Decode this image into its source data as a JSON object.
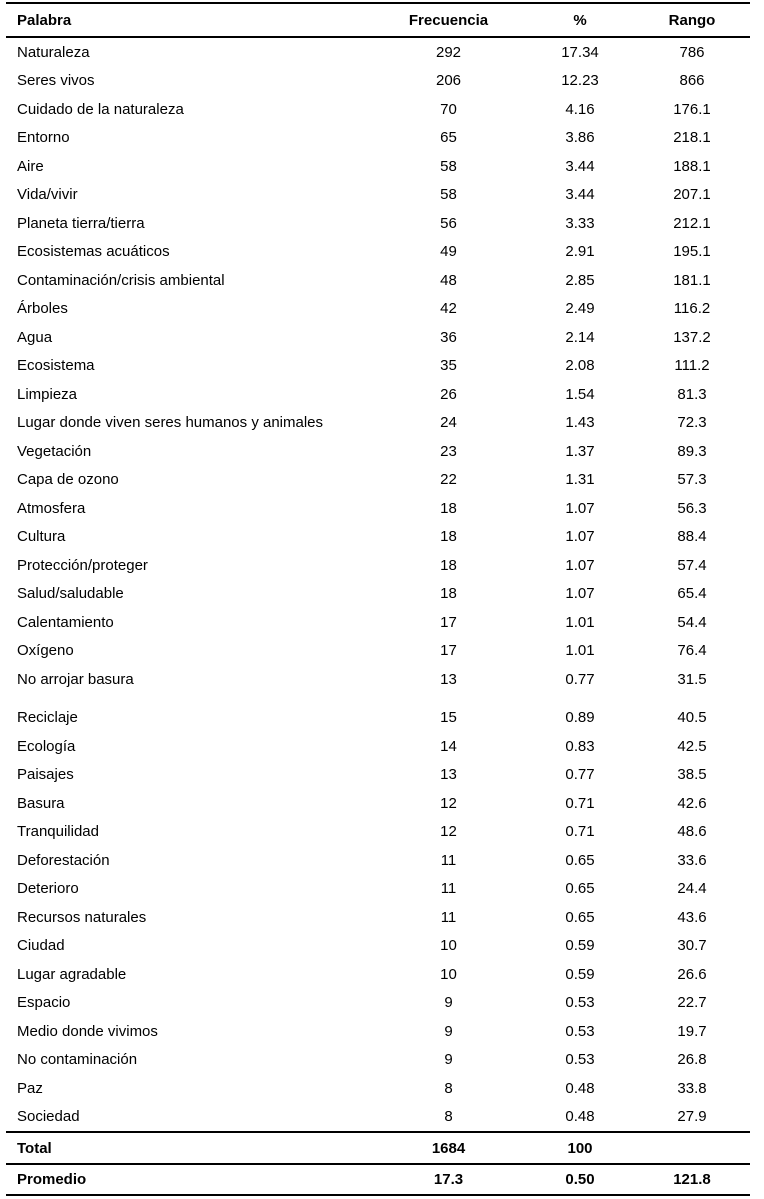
{
  "page": {
    "background_color": "#ffffff",
    "text_color": "#000000",
    "rule_color": "#000000"
  },
  "table": {
    "columns": [
      {
        "label": "Palabra",
        "align": "left"
      },
      {
        "label": "Frecuencia",
        "align": "center"
      },
      {
        "label": "%",
        "align": "center"
      },
      {
        "label": "Rango",
        "align": "center"
      }
    ],
    "rows": [
      {
        "palabra": "Naturaleza",
        "frecuencia": "292",
        "pct": "17.34",
        "rango": "786"
      },
      {
        "palabra": "Seres vivos",
        "frecuencia": "206",
        "pct": "12.23",
        "rango": "866"
      },
      {
        "palabra": "Cuidado de la naturaleza",
        "frecuencia": "70",
        "pct": "4.16",
        "rango": "176.1"
      },
      {
        "palabra": "Entorno",
        "frecuencia": "65",
        "pct": "3.86",
        "rango": "218.1"
      },
      {
        "palabra": "Aire",
        "frecuencia": "58",
        "pct": "3.44",
        "rango": "188.1"
      },
      {
        "palabra": "Vida/vivir",
        "frecuencia": "58",
        "pct": "3.44",
        "rango": "207.1"
      },
      {
        "palabra": "Planeta tierra/tierra",
        "frecuencia": "56",
        "pct": "3.33",
        "rango": "212.1"
      },
      {
        "palabra": "Ecosistemas acuáticos",
        "frecuencia": "49",
        "pct": "2.91",
        "rango": "195.1"
      },
      {
        "palabra": "Contaminación/crisis ambiental",
        "frecuencia": "48",
        "pct": "2.85",
        "rango": "181.1"
      },
      {
        "palabra": "Árboles",
        "frecuencia": "42",
        "pct": "2.49",
        "rango": "116.2"
      },
      {
        "palabra": "Agua",
        "frecuencia": "36",
        "pct": "2.14",
        "rango": "137.2"
      },
      {
        "palabra": "Ecosistema",
        "frecuencia": "35",
        "pct": "2.08",
        "rango": "111.2"
      },
      {
        "palabra": "Limpieza",
        "frecuencia": "26",
        "pct": "1.54",
        "rango": "81.3"
      },
      {
        "palabra": "Lugar donde viven seres humanos y animales",
        "frecuencia": "24",
        "pct": "1.43",
        "rango": "72.3"
      },
      {
        "palabra": "Vegetación",
        "frecuencia": "23",
        "pct": "1.37",
        "rango": "89.3"
      },
      {
        "palabra": "Capa de ozono",
        "frecuencia": "22",
        "pct": "1.31",
        "rango": "57.3"
      },
      {
        "palabra": "Atmosfera",
        "frecuencia": "18",
        "pct": "1.07",
        "rango": "56.3"
      },
      {
        "palabra": "Cultura",
        "frecuencia": "18",
        "pct": "1.07",
        "rango": "88.4"
      },
      {
        "palabra": "Protección/proteger",
        "frecuencia": "18",
        "pct": "1.07",
        "rango": "57.4"
      },
      {
        "palabra": "Salud/saludable",
        "frecuencia": "18",
        "pct": "1.07",
        "rango": "65.4"
      },
      {
        "palabra": "Calentamiento",
        "frecuencia": "17",
        "pct": "1.01",
        "rango": "54.4"
      },
      {
        "palabra": "Oxígeno",
        "frecuencia": "17",
        "pct": "1.01",
        "rango": "76.4"
      },
      {
        "palabra": "No arrojar basura",
        "frecuencia": "13",
        "pct": "0.77",
        "rango": "31.5"
      },
      {
        "palabra": "Reciclaje",
        "frecuencia": "15",
        "pct": "0.89",
        "rango": "40.5",
        "gap_before": true
      },
      {
        "palabra": "Ecología",
        "frecuencia": "14",
        "pct": "0.83",
        "rango": "42.5"
      },
      {
        "palabra": "Paisajes",
        "frecuencia": "13",
        "pct": "0.77",
        "rango": "38.5"
      },
      {
        "palabra": "Basura",
        "frecuencia": "12",
        "pct": "0.71",
        "rango": "42.6"
      },
      {
        "palabra": "Tranquilidad",
        "frecuencia": "12",
        "pct": "0.71",
        "rango": "48.6"
      },
      {
        "palabra": "Deforestación",
        "frecuencia": "11",
        "pct": "0.65",
        "rango": "33.6"
      },
      {
        "palabra": "Deterioro",
        "frecuencia": "11",
        "pct": "0.65",
        "rango": "24.4"
      },
      {
        "palabra": "Recursos naturales",
        "frecuencia": "11",
        "pct": "0.65",
        "rango": "43.6"
      },
      {
        "palabra": "Ciudad",
        "frecuencia": "10",
        "pct": "0.59",
        "rango": "30.7"
      },
      {
        "palabra": "Lugar agradable",
        "frecuencia": "10",
        "pct": "0.59",
        "rango": "26.6"
      },
      {
        "palabra": "Espacio",
        "frecuencia": "9",
        "pct": "0.53",
        "rango": "22.7"
      },
      {
        "palabra": "Medio donde vivimos",
        "frecuencia": "9",
        "pct": "0.53",
        "rango": "19.7"
      },
      {
        "palabra": "No contaminación",
        "frecuencia": "9",
        "pct": "0.53",
        "rango": "26.8"
      },
      {
        "palabra": "Paz",
        "frecuencia": "8",
        "pct": "0.48",
        "rango": "33.8"
      },
      {
        "palabra": "Sociedad",
        "frecuencia": "8",
        "pct": "0.48",
        "rango": "27.9"
      }
    ],
    "footer": {
      "total": {
        "palabra": "Total",
        "frecuencia": "1684",
        "pct": "100",
        "rango": ""
      },
      "promedio": {
        "palabra": "Promedio",
        "frecuencia": "17.3",
        "pct": "0.50",
        "rango": "121.8"
      }
    }
  }
}
